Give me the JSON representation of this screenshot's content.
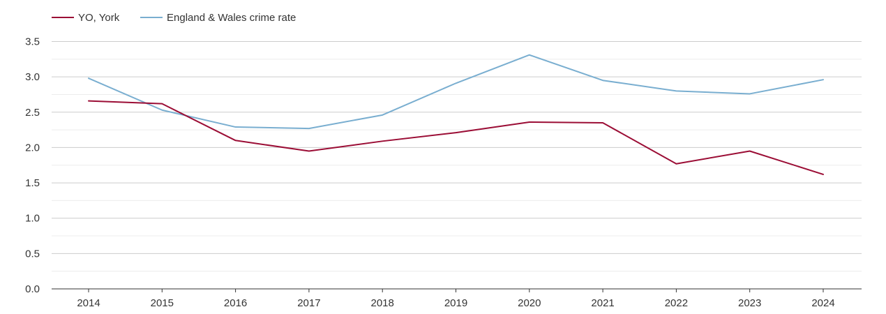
{
  "chart_data": {
    "type": "line",
    "title": "",
    "xlabel": "",
    "ylabel": "",
    "categories": [
      "2014",
      "2015",
      "2016",
      "2017",
      "2018",
      "2019",
      "2020",
      "2021",
      "2022",
      "2023",
      "2024"
    ],
    "ylim": [
      0,
      3.5
    ],
    "y_ticks": [
      "0.0",
      "0.5",
      "1.0",
      "1.5",
      "2.0",
      "2.5",
      "3.0",
      "3.5"
    ],
    "grid": true,
    "legend_position": "top-left",
    "series": [
      {
        "name": "YO, York",
        "color": "#9b0d35",
        "values": [
          2.66,
          2.62,
          2.1,
          1.95,
          2.09,
          2.21,
          2.36,
          2.35,
          1.77,
          1.95,
          1.62
        ]
      },
      {
        "name": "England & Wales crime rate",
        "color": "#79aed0",
        "values": [
          2.98,
          2.53,
          2.29,
          2.27,
          2.46,
          2.91,
          3.31,
          2.95,
          2.8,
          2.76,
          2.96
        ]
      }
    ]
  }
}
